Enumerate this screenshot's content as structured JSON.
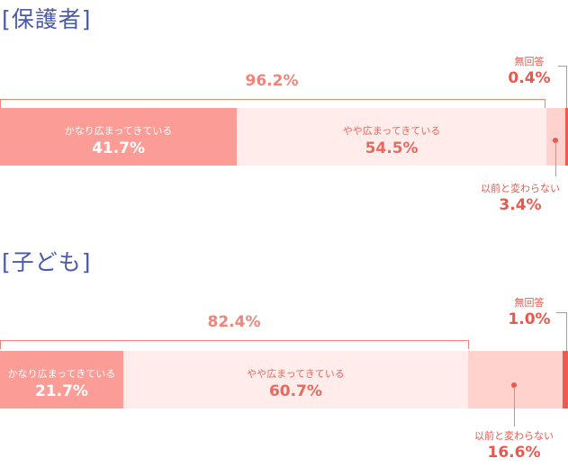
{
  "colors": {
    "title": "#4a5aa8",
    "strong": "#fb9c96",
    "light": "#ffeceb",
    "mid": "#ffd2cd",
    "noanswer": "#ef5a50",
    "accent_text": "#e86a5e"
  },
  "chart_data": [
    {
      "type": "bar",
      "orientation": "horizontal-stacked-100",
      "title": "[保護者]",
      "bracket": {
        "label": "96.2%",
        "value": 96.2
      },
      "series": [
        {
          "name": "かなり広まってきている",
          "value": 41.7,
          "value_label": "41.7%"
        },
        {
          "name": "やや広まってきている",
          "value": 54.5,
          "value_label": "54.5%"
        },
        {
          "name": "以前と変わらない",
          "value": 3.4,
          "value_label": "3.4%"
        },
        {
          "name": "無回答",
          "value": 0.4,
          "value_label": "0.4%"
        }
      ]
    },
    {
      "type": "bar",
      "orientation": "horizontal-stacked-100",
      "title": "[子ども]",
      "bracket": {
        "label": "82.4%",
        "value": 82.4
      },
      "series": [
        {
          "name": "かなり広まってきている",
          "value": 21.7,
          "value_label": "21.7%"
        },
        {
          "name": "やや広まってきている",
          "value": 60.7,
          "value_label": "60.7%"
        },
        {
          "name": "以前と変わらない",
          "value": 16.6,
          "value_label": "16.6%"
        },
        {
          "name": "無回答",
          "value": 1.0,
          "value_label": "1.0%"
        }
      ]
    }
  ]
}
